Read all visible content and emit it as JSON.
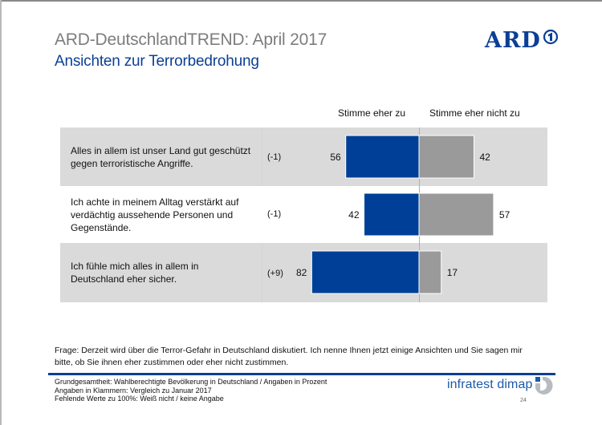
{
  "header": {
    "title": "ARD-DeutschlandTREND: April 2017",
    "subtitle": "Ansichten zur Terrorbedrohung",
    "logo_text": "ARD",
    "logo_icon": "ard-one-icon"
  },
  "colors": {
    "agree": "#003f98",
    "disagree": "#9a9a9a",
    "title_blue": "#0b3f95",
    "row_shaded": "#dadada"
  },
  "chart_data": {
    "type": "bar",
    "orientation": "horizontal-diverging",
    "title": "Ansichten zur Terrorbedrohung",
    "xlabel": "",
    "ylabel": "",
    "unit": "Prozent",
    "xlim": [
      0,
      100
    ],
    "legend": "top",
    "categories": [
      "Alles in allem ist unser Land gut geschützt gegen terroristische Angriffe.",
      "Ich achte in meinem Alltag verstärkt auf verdächtig aussehende Personen und Gegenstände.",
      "Ich fühle mich alles in allem in Deutschland eher sicher."
    ],
    "series": [
      {
        "name": "Stimme eher zu",
        "values": [
          56,
          42,
          82
        ]
      },
      {
        "name": "Stimme eher nicht zu",
        "values": [
          42,
          57,
          17
        ]
      }
    ],
    "changes_vs_january_2017": [
      "(-1)",
      "(-1)",
      "(+9)"
    ]
  },
  "legend": {
    "agree_label": "Stimme eher zu",
    "disagree_label": "Stimme eher nicht zu"
  },
  "rows": [
    {
      "lines": [
        "Alles in allem ist unser Land gut geschützt",
        "gegen terroristische Angriffe."
      ],
      "change": "(-1)",
      "agree": "56",
      "disagree": "42"
    },
    {
      "lines": [
        "Ich achte in meinem Alltag verstärkt auf",
        "verdächtig aussehende Personen und",
        "Gegenstände."
      ],
      "change": "(-1)",
      "agree": "42",
      "disagree": "57"
    },
    {
      "lines": [
        "Ich fühle mich alles in allem in",
        "Deutschland eher sicher."
      ],
      "change": "(+9)",
      "agree": "82",
      "disagree": "17"
    }
  ],
  "footer": {
    "question_line1": "Frage: Derzeit wird über die Terror-Gefahr in Deutschland diskutiert. Ich nenne Ihnen jetzt einige Ansichten und Sie sagen mir",
    "question_line2": "bitte, ob Sie ihnen eher zustimmen oder eher nicht zustimmen.",
    "notes": [
      "Grundgesamtheit: Wahlberechtigte Bevölkerung in Deutschland / Angaben in Prozent",
      "Angaben in Klammern: Vergleich zu Januar 2017",
      "Fehlende Werte zu 100%: Weiß nicht / keine Angabe"
    ],
    "brand": "infratest dimap",
    "brand_icon": "infratest-dimap-logo-icon",
    "page_number": "24"
  }
}
